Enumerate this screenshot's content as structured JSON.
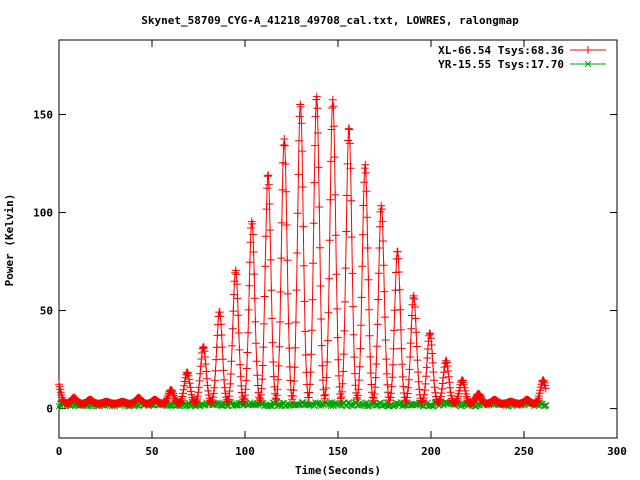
{
  "chart_data": {
    "type": "line",
    "title": "Skynet_58709_CYG-A_41218_49708_cal.txt, LOWRES, ralongmap",
    "xlabel": "Time(Seconds)",
    "ylabel": "Power (Kelvin)",
    "xlim": [
      0,
      300
    ],
    "ylim": [
      -15,
      188
    ],
    "xticks": [
      0,
      50,
      100,
      150,
      200,
      250,
      300
    ],
    "yticks": [
      0,
      50,
      100,
      150
    ],
    "grid": false,
    "legend_position": "top-right",
    "series": [
      {
        "name": "XL-66.54 Tsys:68.36",
        "color": "#ff0000",
        "marker": "+",
        "start": 0,
        "end": 262,
        "baseline": 2.5,
        "scan_period": 8.7,
        "scan_offset": 8.0,
        "scan_peaks": [
          11,
          3,
          2,
          1,
          1,
          3,
          2,
          7,
          16,
          29,
          47,
          68,
          93,
          117,
          135,
          153,
          157,
          155,
          141,
          122,
          101,
          78,
          55,
          36,
          22,
          12,
          5,
          2,
          1,
          2,
          12
        ]
      },
      {
        "name": "YR-15.55 Tsys:17.70",
        "color": "#00a000",
        "marker": "x",
        "start": 0,
        "end": 262,
        "baseline": 2.2,
        "noise": 1.0
      }
    ]
  }
}
